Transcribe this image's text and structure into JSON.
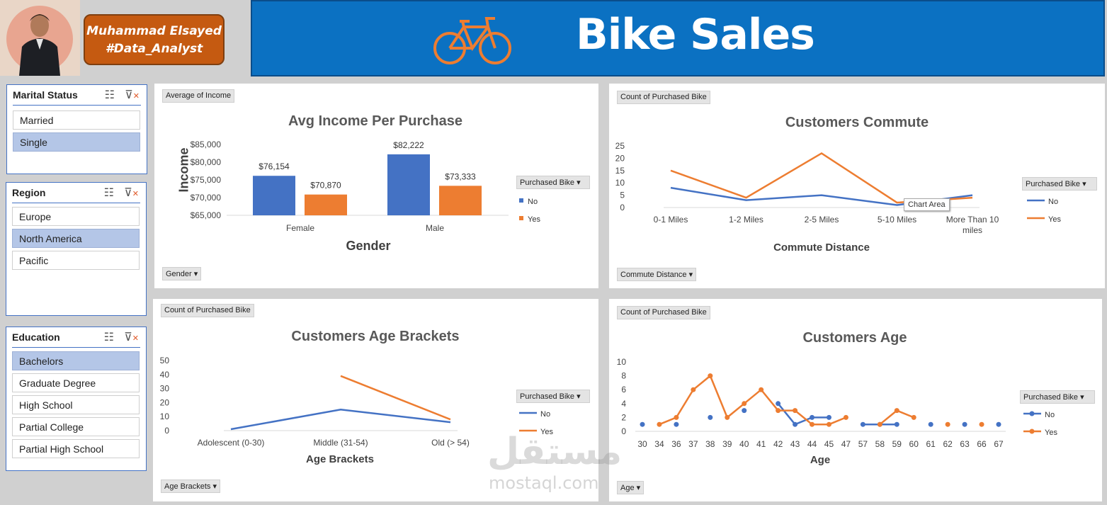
{
  "profile": {
    "name": "Muhammad Elsayed",
    "role": "#Data_Analyst"
  },
  "header": {
    "title": "Bike Sales"
  },
  "slicers": {
    "marital": {
      "title": "Marital Status",
      "items": [
        "Married",
        "Single"
      ],
      "selected": [
        "Single"
      ]
    },
    "region": {
      "title": "Region",
      "items": [
        "Europe",
        "North America",
        "Pacific"
      ],
      "selected": [
        "North America"
      ]
    },
    "education": {
      "title": "Education",
      "items": [
        "Bachelors",
        "Graduate Degree",
        "High School",
        "Partial College",
        "Partial High School"
      ],
      "selected": [
        "Bachelors"
      ]
    }
  },
  "colors": {
    "no": "#4472c4",
    "yes": "#ed7d31",
    "header": "#0b71c2",
    "name_box": "#c55a11"
  },
  "watermark": {
    "arabic": "مستقل",
    "latin": "mostaql.com"
  },
  "chart_data": [
    {
      "type": "bar",
      "title": "Avg Income Per Purchase",
      "value_button": "Average of Income",
      "axis_button": "Gender",
      "legend_title": "Purchased Bike",
      "categories": [
        "Female",
        "Male"
      ],
      "series": [
        {
          "name": "No",
          "values": [
            76154,
            82222
          ],
          "labels": [
            "$76,154",
            "$82,222"
          ]
        },
        {
          "name": "Yes",
          "values": [
            70870,
            73333
          ],
          "labels": [
            "$70,870",
            "$73,333"
          ]
        }
      ],
      "xlabel": "Gender",
      "ylabel": "Income",
      "ylim": [
        65000,
        85000
      ],
      "yticks": [
        "$85,000",
        "$80,000",
        "$75,000",
        "$70,000",
        "$65,000"
      ]
    },
    {
      "type": "line",
      "title": "Customers Commute",
      "value_button": "Count of Purchased Bike",
      "axis_button": "Commute Distance",
      "legend_title": "Purchased Bike",
      "categories": [
        "0-1 Miles",
        "1-2 Miles",
        "2-5 Miles",
        "5-10 Miles",
        "More Than 10 miles"
      ],
      "series": [
        {
          "name": "No",
          "values": [
            8,
            3,
            5,
            1,
            5
          ]
        },
        {
          "name": "Yes",
          "values": [
            15,
            4,
            22,
            2,
            4
          ]
        }
      ],
      "xlabel": "Commute Distance",
      "ylim": [
        0,
        25
      ],
      "yticks": [
        "25",
        "20",
        "15",
        "10",
        "5",
        "0"
      ],
      "tooltip": "Chart Area"
    },
    {
      "type": "line",
      "title": "Customers Age Brackets",
      "value_button": "Count of Purchased Bike",
      "axis_button": "Age Brackets",
      "legend_title": "Purchased Bike",
      "categories": [
        "Adolescent (0-30)",
        "Middle (31-54)",
        "Old (> 54)"
      ],
      "series": [
        {
          "name": "No",
          "values": [
            1,
            15,
            6
          ]
        },
        {
          "name": "Yes",
          "values": [
            null,
            39,
            8
          ]
        }
      ],
      "xlabel": "Age Brackets",
      "ylim": [
        0,
        50
      ],
      "yticks": [
        "50",
        "40",
        "30",
        "20",
        "10",
        "0"
      ]
    },
    {
      "type": "line",
      "title": "Customers Age",
      "value_button": "Count of Purchased Bike",
      "axis_button": "Age",
      "legend_title": "Purchased Bike",
      "categories": [
        "30",
        "34",
        "36",
        "37",
        "38",
        "39",
        "40",
        "41",
        "42",
        "43",
        "44",
        "45",
        "47",
        "57",
        "58",
        "59",
        "60",
        "61",
        "62",
        "63",
        "66",
        "67"
      ],
      "series": [
        {
          "name": "No",
          "values": [
            1,
            null,
            1,
            null,
            2,
            null,
            3,
            null,
            4,
            1,
            2,
            2,
            null,
            1,
            1,
            1,
            null,
            1,
            null,
            1,
            null,
            1
          ]
        },
        {
          "name": "Yes",
          "values": [
            null,
            1,
            2,
            6,
            8,
            2,
            4,
            6,
            3,
            3,
            1,
            1,
            2,
            null,
            1,
            3,
            2,
            null,
            1,
            null,
            1,
            null
          ]
        }
      ],
      "xlabel": "Age",
      "ylim": [
        0,
        10
      ],
      "yticks": [
        "10",
        "8",
        "6",
        "4",
        "2",
        "0"
      ]
    }
  ]
}
